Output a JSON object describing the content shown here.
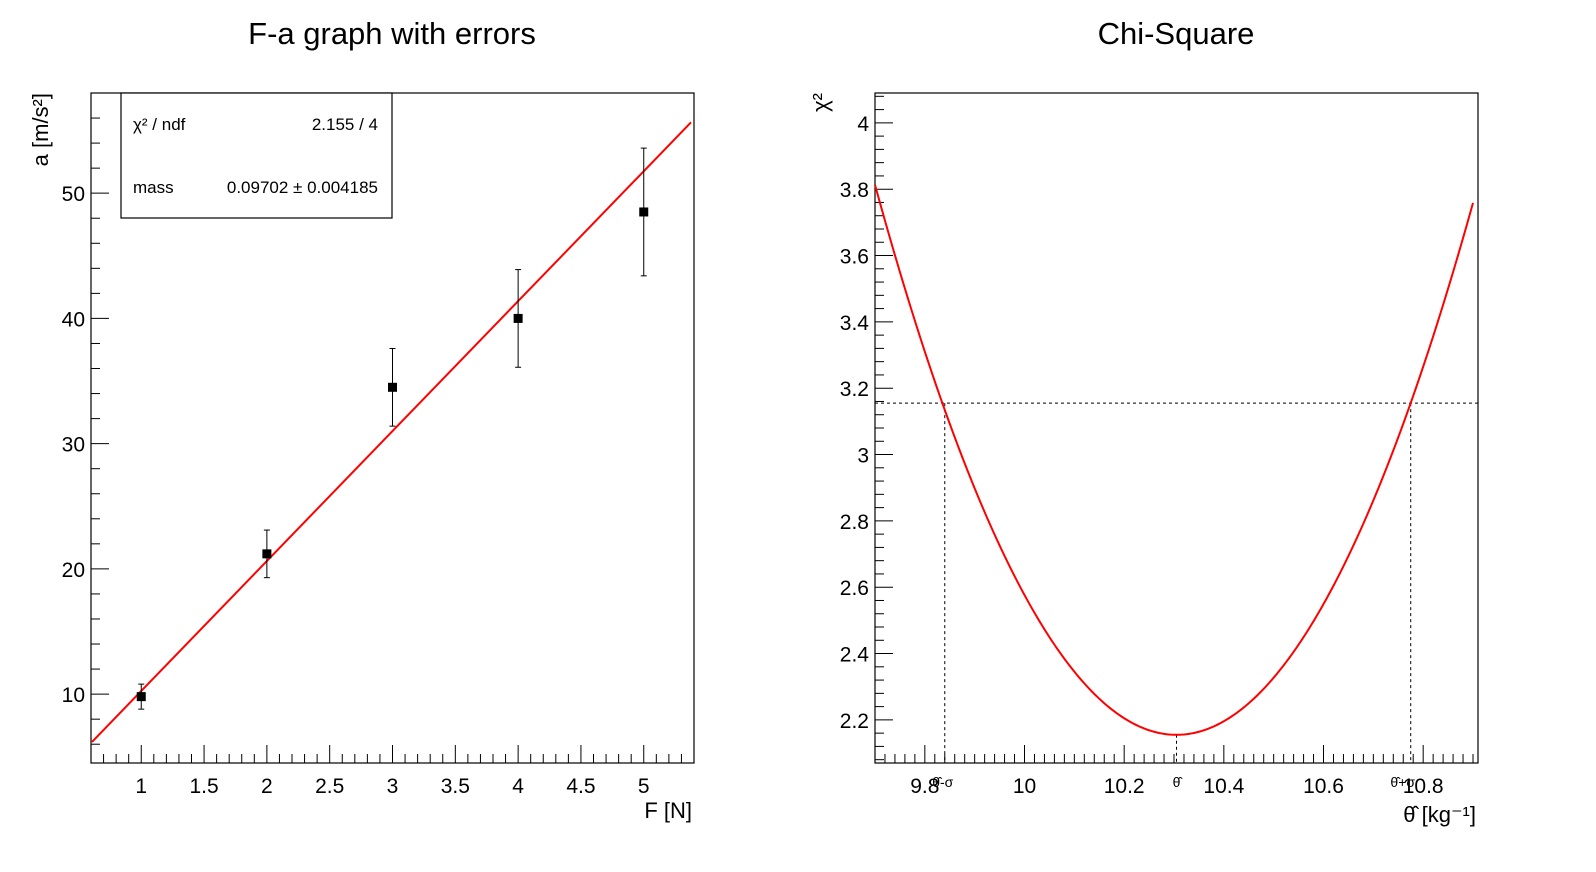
{
  "chart_data": [
    {
      "type": "scatter",
      "title": "F-a graph with errors",
      "xlabel": "F [N]",
      "ylabel": "a [m/s²]",
      "xlim": [
        0.6,
        5.4
      ],
      "ylim": [
        4.5,
        58
      ],
      "x_ticks": [
        "1",
        "1.5",
        "2",
        "2.5",
        "3",
        "3.5",
        "4",
        "4.5",
        "5"
      ],
      "y_ticks": [
        "10",
        "20",
        "30",
        "40",
        "50"
      ],
      "series": [
        {
          "points": [
            {
              "x": 1,
              "y": 9.8,
              "err": 1.0
            },
            {
              "x": 2,
              "y": 21.2,
              "err": 1.9
            },
            {
              "x": 3,
              "y": 34.5,
              "err": 3.1
            },
            {
              "x": 4,
              "y": 40.0,
              "err": 3.9
            },
            {
              "x": 5,
              "y": 48.5,
              "err": 5.1
            }
          ]
        }
      ],
      "fit": {
        "color": "#ff0000",
        "x_range": [
          0.6,
          5.4
        ],
        "slope": 10.307,
        "intercept": 0.0
      },
      "stats": {
        "chi2_label": "χ² / ndf",
        "chi2_value": "2.155 / 4",
        "param_label": "mass",
        "param_value": "0.09702 ± 0.004185"
      },
      "grid": false
    },
    {
      "type": "line",
      "title": "Chi-Square",
      "xlabel": "θ̂ [kg⁻¹]",
      "ylabel": "χ²",
      "xlim": [
        9.7,
        10.91
      ],
      "ylim": [
        2.07,
        4.09
      ],
      "x_ticks": [
        "9.8",
        "10",
        "10.2",
        "10.4",
        "10.6",
        "10.8"
      ],
      "y_ticks": [
        "2.2",
        "2.4",
        "2.6",
        "2.8",
        "3",
        "3.2",
        "3.4",
        "3.6",
        "3.8",
        "4"
      ],
      "curve": {
        "color": "#ff0000",
        "min_x": 10.305,
        "min_y": 2.155,
        "curvature": 4.53,
        "x_range": [
          9.7,
          10.9
        ]
      },
      "markers": {
        "lower": {
          "x": 9.84,
          "label": "θ̂-σ"
        },
        "center": {
          "x": 10.305,
          "label": "θ̂"
        },
        "upper": {
          "x": 10.775,
          "label": "θ̂+σ"
        },
        "level": 3.155
      },
      "grid": false
    }
  ]
}
